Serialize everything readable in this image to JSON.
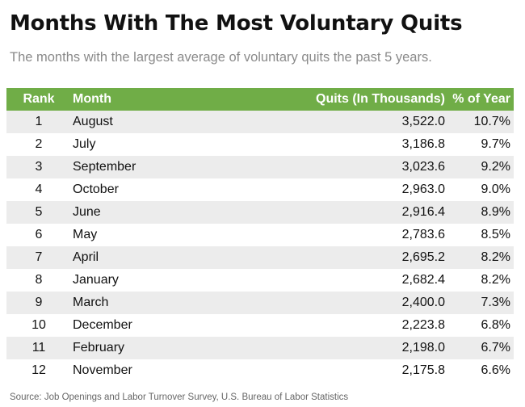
{
  "title": "Months With The Most Voluntary Quits",
  "subtitle": "The months with the largest average of voluntary quits the past 5 years.",
  "table": {
    "headers": {
      "rank": "Rank",
      "month": "Month",
      "quits": "Quits (In Thousands)",
      "pct": "% of Year"
    },
    "rows": [
      {
        "rank": "1",
        "month": "August",
        "quits": "3,522.0",
        "pct": "10.7%"
      },
      {
        "rank": "2",
        "month": "July",
        "quits": "3,186.8",
        "pct": "9.7%"
      },
      {
        "rank": "3",
        "month": "September",
        "quits": "3,023.6",
        "pct": "9.2%"
      },
      {
        "rank": "4",
        "month": "October",
        "quits": "2,963.0",
        "pct": "9.0%"
      },
      {
        "rank": "5",
        "month": "June",
        "quits": "2,916.4",
        "pct": "8.9%"
      },
      {
        "rank": "6",
        "month": "May",
        "quits": "2,783.6",
        "pct": "8.5%"
      },
      {
        "rank": "7",
        "month": "April",
        "quits": "2,695.2",
        "pct": "8.2%"
      },
      {
        "rank": "8",
        "month": "January",
        "quits": "2,682.4",
        "pct": "8.2%"
      },
      {
        "rank": "9",
        "month": "March",
        "quits": "2,400.0",
        "pct": "7.3%"
      },
      {
        "rank": "10",
        "month": "December",
        "quits": "2,223.8",
        "pct": "6.8%"
      },
      {
        "rank": "11",
        "month": "February",
        "quits": "2,198.0",
        "pct": "6.7%"
      },
      {
        "rank": "12",
        "month": "November",
        "quits": "2,175.8",
        "pct": "6.6%"
      }
    ]
  },
  "source": "Source: Job Openings and Labor Turnover Survey, U.S. Bureau of Labor Statistics",
  "colors": {
    "header_bg": "#70ad47",
    "row_alt_bg": "#ececec",
    "subtitle": "#8a8a8a"
  }
}
